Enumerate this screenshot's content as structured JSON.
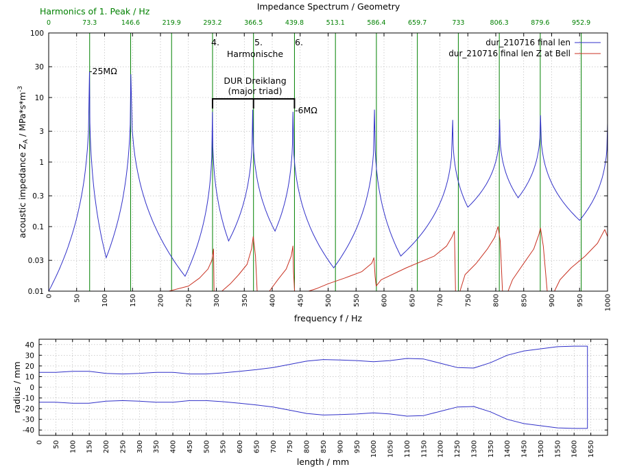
{
  "header": {
    "title": "Impedance Spectrum / Geometry",
    "harmonics_label": "Harmonics of 1. Peak / Hz"
  },
  "colors": {
    "series_blue": "#2f2fc8",
    "series_red": "#c83020",
    "harmonic_lines": "#008000",
    "harmonic_text": "#008000",
    "grid": "#b0b0b0"
  },
  "annotations": {
    "peak_25": "-25MΩ",
    "peak_6": "-6MΩ",
    "h4": "4.",
    "h5": "5.",
    "h6": "6.",
    "harmonische": "Harmonische",
    "dur_line1": "DUR Dreiklang",
    "dur_line2": "(major triad)"
  },
  "chart_data": [
    {
      "type": "line",
      "title": "Impedance Spectrum / Geometry",
      "xlabel": "frequency f / Hz",
      "ylabel": "acoustic impedance Z",
      "ylabel_sub": "A",
      "ylabel_unit": "/ MPa*s*m",
      "ylabel_exp": "-3",
      "xlim": [
        0,
        1000
      ],
      "ylim": [
        0.01,
        100
      ],
      "y_scale": "log",
      "grid": true,
      "legend_position": "top-right",
      "x_ticks": [
        0,
        50,
        100,
        150,
        200,
        250,
        300,
        350,
        400,
        450,
        500,
        550,
        600,
        650,
        700,
        750,
        800,
        850,
        900,
        950,
        1000
      ],
      "y_ticks": [
        0.01,
        0.03,
        0.1,
        0.3,
        1,
        3,
        10,
        30,
        100
      ],
      "y_tick_labels": [
        "0.01",
        "0.03",
        "0.1",
        "0.3",
        "1",
        "3",
        "10",
        "30",
        "100"
      ],
      "harmonics": [
        0,
        73.3,
        146.6,
        219.9,
        293.2,
        366.5,
        439.8,
        513.1,
        586.4,
        659.7,
        733,
        806.3,
        879.6,
        952.9
      ],
      "harmonic_labels": [
        "0",
        "73.3",
        "146.6",
        "219.9",
        "293.2",
        "366.5",
        "439.8",
        "513.1",
        "586.4",
        "659.7",
        "733",
        "806.3",
        "879.6",
        "952.9"
      ],
      "series": [
        {
          "name": "dur_210716 final len",
          "resonances": [
            {
              "f": 73,
              "z": 25
            },
            {
              "f": 147,
              "z": 23
            },
            {
              "f": 293,
              "z": 6
            },
            {
              "f": 365,
              "z": 6.5
            },
            {
              "f": 437,
              "z": 6
            },
            {
              "f": 583,
              "z": 6.5
            },
            {
              "f": 723,
              "z": 4.5
            },
            {
              "f": 807,
              "z": 4.6
            },
            {
              "f": 880,
              "z": 5.3
            },
            {
              "f": 1000,
              "z": 4
            }
          ],
          "antiresonances": [
            {
              "f": 0,
              "z": 0.01
            },
            {
              "f": 103,
              "z": 0.033
            },
            {
              "f": 244,
              "z": 0.017
            },
            {
              "f": 322,
              "z": 0.06
            },
            {
              "f": 405,
              "z": 0.085
            },
            {
              "f": 510,
              "z": 0.023
            },
            {
              "f": 630,
              "z": 0.035
            },
            {
              "f": 750,
              "z": 0.2
            },
            {
              "f": 840,
              "z": 0.28
            },
            {
              "f": 950,
              "z": 0.125
            }
          ]
        },
        {
          "name": "dur_210716 final len Z at Bell",
          "segments": [
            [
              [
                215,
                0.01
              ],
              [
                250,
                0.012
              ],
              [
                270,
                0.016
              ],
              [
                285,
                0.022
              ],
              [
                292,
                0.03
              ],
              [
                295,
                0.045
              ],
              [
                296,
                0.01
              ]
            ],
            [
              [
                310,
                0.01
              ],
              [
                325,
                0.013
              ],
              [
                340,
                0.018
              ],
              [
                355,
                0.026
              ],
              [
                363,
                0.045
              ],
              [
                366,
                0.07
              ],
              [
                370,
                0.035
              ],
              [
                373,
                0.01
              ]
            ],
            [
              [
                395,
                0.01
              ],
              [
                410,
                0.015
              ],
              [
                425,
                0.022
              ],
              [
                434,
                0.035
              ],
              [
                437,
                0.05
              ],
              [
                438,
                0.02
              ],
              [
                440,
                0.01
              ]
            ],
            [
              [
                465,
                0.01
              ],
              [
                480,
                0.011
              ],
              [
                500,
                0.013
              ],
              [
                530,
                0.016
              ],
              [
                560,
                0.02
              ],
              [
                578,
                0.027
              ],
              [
                582,
                0.033
              ],
              [
                584,
                0.017
              ],
              [
                586,
                0.012
              ],
              [
                595,
                0.015
              ],
              [
                640,
                0.023
              ],
              [
                690,
                0.035
              ],
              [
                712,
                0.05
              ],
              [
                722,
                0.07
              ],
              [
                726,
                0.085
              ],
              [
                727,
                0.03
              ],
              [
                728,
                0.01
              ]
            ],
            [
              [
                736,
                0.01
              ],
              [
                745,
                0.018
              ],
              [
                765,
                0.027
              ],
              [
                785,
                0.045
              ],
              [
                798,
                0.068
              ],
              [
                804,
                0.1
              ],
              [
                808,
                0.06
              ],
              [
                812,
                0.01
              ]
            ],
            [
              [
                822,
                0.01
              ],
              [
                830,
                0.015
              ],
              [
                850,
                0.027
              ],
              [
                868,
                0.045
              ],
              [
                877,
                0.075
              ],
              [
                880,
                0.095
              ],
              [
                885,
                0.05
              ],
              [
                892,
                0.01
              ]
            ],
            [
              [
                905,
                0.01
              ],
              [
                915,
                0.015
              ],
              [
                935,
                0.023
              ],
              [
                960,
                0.035
              ],
              [
                982,
                0.055
              ],
              [
                995,
                0.09
              ],
              [
                1000,
                0.07
              ]
            ]
          ]
        }
      ]
    },
    {
      "type": "line",
      "xlabel": "length / mm",
      "ylabel": "radius / mm",
      "xlim": [
        0,
        1700
      ],
      "ylim": [
        -45,
        45
      ],
      "grid": true,
      "x_ticks": [
        0,
        50,
        100,
        150,
        200,
        250,
        300,
        350,
        400,
        450,
        500,
        550,
        600,
        650,
        700,
        750,
        800,
        850,
        900,
        950,
        1000,
        1050,
        1100,
        1150,
        1200,
        1250,
        1300,
        1350,
        1400,
        1450,
        1500,
        1550,
        1600,
        1650
      ],
      "y_ticks": [
        -40,
        -30,
        -20,
        -10,
        0,
        10,
        20,
        30,
        40
      ],
      "profile": [
        [
          0,
          14
        ],
        [
          50,
          14
        ],
        [
          100,
          15
        ],
        [
          150,
          15
        ],
        [
          200,
          13
        ],
        [
          250,
          12.5
        ],
        [
          300,
          13
        ],
        [
          350,
          14
        ],
        [
          400,
          14
        ],
        [
          450,
          12.5
        ],
        [
          500,
          12.5
        ],
        [
          550,
          13.5
        ],
        [
          600,
          15
        ],
        [
          650,
          16.5
        ],
        [
          700,
          18.5
        ],
        [
          750,
          21.5
        ],
        [
          800,
          24.5
        ],
        [
          850,
          26
        ],
        [
          900,
          25.5
        ],
        [
          950,
          25
        ],
        [
          1000,
          24
        ],
        [
          1050,
          25
        ],
        [
          1100,
          27
        ],
        [
          1150,
          26.5
        ],
        [
          1200,
          22.5
        ],
        [
          1250,
          18.5
        ],
        [
          1300,
          18
        ],
        [
          1350,
          23
        ],
        [
          1400,
          30
        ],
        [
          1450,
          34
        ],
        [
          1500,
          36
        ],
        [
          1550,
          38
        ],
        [
          1600,
          38.5
        ],
        [
          1640,
          38.5
        ]
      ]
    }
  ]
}
